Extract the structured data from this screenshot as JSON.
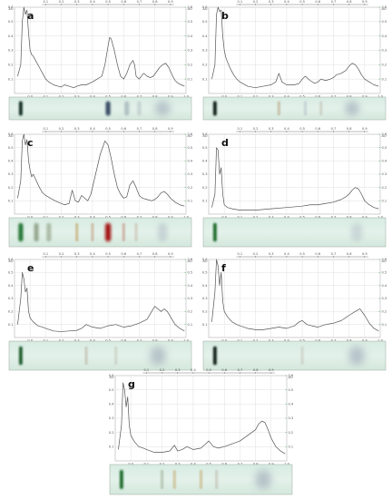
{
  "colors": {
    "curve": "#555555",
    "grid": "#d9d9d9",
    "axis": "#777777",
    "frame": "#b0b0b0",
    "strip_bg": "#e3f1ea",
    "green_axis_tick": "#4caf50"
  },
  "chart_data": [
    {
      "type": "line",
      "panel": "a",
      "xlim": [
        -0.1,
        1.0
      ],
      "ylim": [
        0,
        0.6
      ],
      "x_ticks_bottom": [
        "0.0",
        "0.1",
        "0.2",
        "0.3",
        "0.4",
        "0.5",
        "0.6",
        "0.7",
        "0.8",
        "0.9",
        "1.0"
      ],
      "x_ticks_top": [
        "0.1",
        "0.2",
        "0.3",
        "0.4",
        "0.5",
        "0.6",
        "0.7",
        "0.8",
        "0.9"
      ],
      "y_ticks": [
        "0.1",
        "0.2",
        "0.3",
        "0.4",
        "0.5",
        "0.6"
      ],
      "y_unit_label": "AU",
      "x": [
        -0.08,
        -0.06,
        -0.05,
        -0.04,
        -0.03,
        -0.02,
        -0.01,
        0.0,
        0.01,
        0.02,
        0.04,
        0.06,
        0.08,
        0.1,
        0.12,
        0.15,
        0.18,
        0.2,
        0.22,
        0.25,
        0.28,
        0.3,
        0.33,
        0.36,
        0.4,
        0.43,
        0.46,
        0.48,
        0.5,
        0.51,
        0.52,
        0.54,
        0.56,
        0.58,
        0.6,
        0.62,
        0.64,
        0.66,
        0.67,
        0.68,
        0.7,
        0.72,
        0.73,
        0.75,
        0.77,
        0.79,
        0.81,
        0.83,
        0.85,
        0.87,
        0.89,
        0.91,
        0.93,
        0.95,
        0.97,
        0.99
      ],
      "y": [
        0.12,
        0.2,
        0.5,
        0.6,
        0.55,
        0.58,
        0.42,
        0.3,
        0.27,
        0.26,
        0.22,
        0.18,
        0.14,
        0.1,
        0.08,
        0.06,
        0.05,
        0.045,
        0.06,
        0.05,
        0.04,
        0.05,
        0.06,
        0.06,
        0.08,
        0.1,
        0.12,
        0.2,
        0.33,
        0.39,
        0.38,
        0.3,
        0.2,
        0.12,
        0.1,
        0.14,
        0.2,
        0.23,
        0.2,
        0.12,
        0.1,
        0.13,
        0.14,
        0.12,
        0.11,
        0.12,
        0.15,
        0.18,
        0.2,
        0.21,
        0.18,
        0.13,
        0.09,
        0.07,
        0.06,
        0.05
      ],
      "strip_bands": [
        {
          "rf": -0.06,
          "color": "#0d2a20",
          "width": 0.022,
          "opacity": 1.0
        },
        {
          "rf": 0.5,
          "color": "#1c3050",
          "width": 0.03,
          "opacity": 0.85
        },
        {
          "rf": 0.62,
          "color": "#7a8a9a",
          "width": 0.03,
          "opacity": 0.45
        },
        {
          "rf": 0.7,
          "color": "#9aa3b0",
          "width": 0.025,
          "opacity": 0.35
        },
        {
          "rf": 0.85,
          "color": "#8a94a8",
          "width": 0.1,
          "opacity": 0.5
        }
      ]
    },
    {
      "type": "line",
      "panel": "b",
      "xlim": [
        -0.1,
        1.0
      ],
      "ylim": [
        0,
        0.6
      ],
      "x_ticks_bottom": [
        "0.0",
        "0.1",
        "0.2",
        "0.3",
        "0.4",
        "0.5",
        "0.6",
        "0.7",
        "0.8",
        "0.9",
        "1.0"
      ],
      "x_ticks_top": [
        "0.1",
        "0.2",
        "0.3",
        "0.4",
        "0.5",
        "0.6",
        "0.7",
        "0.8",
        "0.9"
      ],
      "y_ticks": [
        "0.1",
        "0.2",
        "0.3",
        "0.4",
        "0.5",
        "0.6"
      ],
      "y_unit_label": "AU",
      "x": [
        -0.08,
        -0.06,
        -0.05,
        -0.04,
        -0.03,
        -0.02,
        -0.01,
        0.0,
        0.01,
        0.02,
        0.04,
        0.06,
        0.08,
        0.1,
        0.15,
        0.2,
        0.25,
        0.3,
        0.33,
        0.35,
        0.37,
        0.4,
        0.45,
        0.48,
        0.5,
        0.52,
        0.55,
        0.58,
        0.6,
        0.62,
        0.65,
        0.68,
        0.7,
        0.72,
        0.75,
        0.78,
        0.8,
        0.82,
        0.84,
        0.86,
        0.88,
        0.9,
        0.93,
        0.96,
        0.99
      ],
      "y": [
        0.1,
        0.2,
        0.55,
        0.6,
        0.57,
        0.58,
        0.4,
        0.3,
        0.25,
        0.22,
        0.17,
        0.13,
        0.1,
        0.08,
        0.05,
        0.04,
        0.05,
        0.06,
        0.08,
        0.14,
        0.08,
        0.06,
        0.06,
        0.07,
        0.1,
        0.12,
        0.09,
        0.07,
        0.08,
        0.1,
        0.09,
        0.1,
        0.11,
        0.13,
        0.14,
        0.16,
        0.19,
        0.21,
        0.2,
        0.17,
        0.13,
        0.1,
        0.08,
        0.06,
        0.05
      ],
      "strip_bands": [
        {
          "rf": -0.06,
          "color": "#0a1e16",
          "width": 0.022,
          "opacity": 1.0
        },
        {
          "rf": 0.35,
          "color": "#b5a080",
          "width": 0.02,
          "opacity": 0.5
        },
        {
          "rf": 0.52,
          "color": "#a0a8b8",
          "width": 0.02,
          "opacity": 0.35
        },
        {
          "rf": 0.62,
          "color": "#b0a898",
          "width": 0.02,
          "opacity": 0.35
        },
        {
          "rf": 0.82,
          "color": "#8a94a8",
          "width": 0.09,
          "opacity": 0.5
        }
      ]
    },
    {
      "type": "line",
      "panel": "c",
      "xlim": [
        -0.1,
        1.0
      ],
      "ylim": [
        0,
        0.6
      ],
      "x_ticks_bottom": [
        "0.0",
        "0.1",
        "0.2",
        "0.3",
        "0.4",
        "0.5",
        "0.6",
        "0.7",
        "0.8",
        "0.9",
        "1.0"
      ],
      "x_ticks_top": [
        "0.1",
        "0.2",
        "0.3",
        "0.4",
        "0.5",
        "0.6",
        "0.7",
        "0.8",
        "0.9"
      ],
      "y_ticks": [
        "0.1",
        "0.2",
        "0.3",
        "0.4",
        "0.5",
        "0.6"
      ],
      "y_unit_label": "AU",
      "x": [
        -0.08,
        -0.06,
        -0.05,
        -0.04,
        -0.03,
        -0.02,
        -0.01,
        0.0,
        0.01,
        0.02,
        0.04,
        0.06,
        0.08,
        0.1,
        0.13,
        0.16,
        0.2,
        0.22,
        0.25,
        0.27,
        0.29,
        0.31,
        0.33,
        0.35,
        0.37,
        0.39,
        0.42,
        0.45,
        0.48,
        0.5,
        0.52,
        0.54,
        0.56,
        0.58,
        0.6,
        0.62,
        0.64,
        0.66,
        0.68,
        0.7,
        0.72,
        0.75,
        0.78,
        0.8,
        0.82,
        0.84,
        0.86,
        0.88,
        0.9,
        0.93,
        0.96,
        0.99
      ],
      "y": [
        0.12,
        0.25,
        0.55,
        0.6,
        0.52,
        0.56,
        0.4,
        0.33,
        0.28,
        0.3,
        0.25,
        0.2,
        0.16,
        0.14,
        0.12,
        0.1,
        0.08,
        0.07,
        0.08,
        0.18,
        0.1,
        0.09,
        0.14,
        0.12,
        0.1,
        0.15,
        0.3,
        0.45,
        0.55,
        0.52,
        0.42,
        0.3,
        0.2,
        0.15,
        0.12,
        0.13,
        0.22,
        0.25,
        0.2,
        0.14,
        0.12,
        0.11,
        0.1,
        0.11,
        0.13,
        0.16,
        0.17,
        0.15,
        0.12,
        0.09,
        0.07,
        0.06
      ],
      "strip_bands": [
        {
          "rf": -0.06,
          "color": "#2a7a3a",
          "width": 0.03,
          "opacity": 1.0
        },
        {
          "rf": 0.04,
          "color": "#6a7a5a",
          "width": 0.03,
          "opacity": 0.6
        },
        {
          "rf": 0.12,
          "color": "#7a8a6a",
          "width": 0.03,
          "opacity": 0.5
        },
        {
          "rf": 0.3,
          "color": "#c0a060",
          "width": 0.02,
          "opacity": 0.55
        },
        {
          "rf": 0.4,
          "color": "#c09070",
          "width": 0.02,
          "opacity": 0.45
        },
        {
          "rf": 0.5,
          "color": "#a01010",
          "width": 0.035,
          "opacity": 1.0
        },
        {
          "rf": 0.6,
          "color": "#c08070",
          "width": 0.02,
          "opacity": 0.45
        },
        {
          "rf": 0.68,
          "color": "#c0a090",
          "width": 0.02,
          "opacity": 0.35
        },
        {
          "rf": 0.85,
          "color": "#a0a8b8",
          "width": 0.06,
          "opacity": 0.4
        }
      ]
    },
    {
      "type": "line",
      "panel": "d",
      "xlim": [
        -0.1,
        1.0
      ],
      "ylim": [
        0,
        0.6
      ],
      "x_ticks_bottom": [
        "0.0",
        "0.1",
        "0.2",
        "0.3",
        "0.4",
        "0.5",
        "0.6",
        "0.7",
        "0.8",
        "0.9",
        "1.0"
      ],
      "x_ticks_top": [
        "0.1",
        "0.2",
        "0.3",
        "0.4",
        "0.5",
        "0.6",
        "0.7",
        "0.8",
        "0.9"
      ],
      "y_ticks": [
        "0.1",
        "0.2",
        "0.3",
        "0.4",
        "0.5",
        "0.6"
      ],
      "y_unit_label": "AU",
      "x": [
        -0.08,
        -0.06,
        -0.05,
        -0.04,
        -0.03,
        -0.02,
        -0.01,
        0.0,
        0.02,
        0.05,
        0.1,
        0.2,
        0.3,
        0.4,
        0.5,
        0.55,
        0.6,
        0.65,
        0.7,
        0.75,
        0.78,
        0.8,
        0.82,
        0.84,
        0.86,
        0.88,
        0.9,
        0.93,
        0.96,
        0.99
      ],
      "y": [
        0.05,
        0.15,
        0.5,
        0.48,
        0.3,
        0.35,
        0.15,
        0.07,
        0.05,
        0.04,
        0.03,
        0.03,
        0.04,
        0.05,
        0.06,
        0.07,
        0.07,
        0.08,
        0.09,
        0.11,
        0.13,
        0.15,
        0.18,
        0.2,
        0.19,
        0.15,
        0.1,
        0.07,
        0.05,
        0.04
      ],
      "strip_bands": [
        {
          "rf": -0.06,
          "color": "#1a6a2a",
          "width": 0.022,
          "opacity": 1.0
        },
        {
          "rf": 0.85,
          "color": "#a0a8b8",
          "width": 0.07,
          "opacity": 0.35
        }
      ]
    },
    {
      "type": "line",
      "panel": "e",
      "xlim": [
        -0.1,
        1.0
      ],
      "ylim": [
        0,
        0.6
      ],
      "x_ticks_bottom": [
        "0.0",
        "0.1",
        "0.2",
        "0.3",
        "0.4",
        "0.5",
        "0.6",
        "0.7",
        "0.8",
        "0.9",
        "1.0"
      ],
      "x_ticks_top": [
        "0.1",
        "0.2",
        "0.3",
        "0.4",
        "0.5",
        "0.6",
        "0.7",
        "0.8",
        "0.9"
      ],
      "y_ticks": [
        "0.1",
        "0.2",
        "0.3",
        "0.4",
        "0.5",
        "0.6"
      ],
      "y_unit_label": "AU",
      "x": [
        -0.08,
        -0.06,
        -0.05,
        -0.04,
        -0.03,
        -0.02,
        -0.01,
        0.0,
        0.02,
        0.05,
        0.08,
        0.1,
        0.15,
        0.2,
        0.25,
        0.3,
        0.33,
        0.36,
        0.4,
        0.45,
        0.5,
        0.55,
        0.6,
        0.65,
        0.7,
        0.75,
        0.78,
        0.8,
        0.82,
        0.84,
        0.86,
        0.88,
        0.9,
        0.93,
        0.96,
        0.99
      ],
      "y": [
        0.1,
        0.3,
        0.5,
        0.45,
        0.35,
        0.38,
        0.2,
        0.15,
        0.12,
        0.09,
        0.08,
        0.07,
        0.05,
        0.045,
        0.05,
        0.055,
        0.07,
        0.1,
        0.08,
        0.07,
        0.09,
        0.1,
        0.08,
        0.09,
        0.11,
        0.14,
        0.2,
        0.24,
        0.22,
        0.2,
        0.22,
        0.2,
        0.16,
        0.1,
        0.07,
        0.05
      ],
      "strip_bands": [
        {
          "rf": -0.06,
          "color": "#1a5a2a",
          "width": 0.022,
          "opacity": 1.0
        },
        {
          "rf": 0.36,
          "color": "#b0a090",
          "width": 0.02,
          "opacity": 0.4
        },
        {
          "rf": 0.55,
          "color": "#b0a898",
          "width": 0.02,
          "opacity": 0.3
        },
        {
          "rf": 0.82,
          "color": "#8a94a8",
          "width": 0.1,
          "opacity": 0.5
        }
      ]
    },
    {
      "type": "line",
      "panel": "f",
      "xlim": [
        -0.1,
        1.0
      ],
      "ylim": [
        0,
        0.6
      ],
      "x_ticks_bottom": [
        "0.0",
        "0.1",
        "0.2",
        "0.3",
        "0.4",
        "0.5",
        "0.6",
        "0.7",
        "0.8",
        "0.9",
        "1.0"
      ],
      "x_ticks_top": [
        "0.1",
        "0.2",
        "0.3",
        "0.4",
        "0.5",
        "0.6",
        "0.7",
        "0.8",
        "0.9"
      ],
      "y_ticks": [
        "0.1",
        "0.2",
        "0.3",
        "0.4",
        "0.5",
        "0.6"
      ],
      "y_unit_label": "AU",
      "x": [
        -0.08,
        -0.06,
        -0.05,
        -0.04,
        -0.03,
        -0.02,
        -0.01,
        0.0,
        0.02,
        0.05,
        0.08,
        0.1,
        0.15,
        0.2,
        0.25,
        0.3,
        0.35,
        0.4,
        0.45,
        0.48,
        0.5,
        0.53,
        0.56,
        0.6,
        0.65,
        0.7,
        0.75,
        0.8,
        0.84,
        0.87,
        0.9,
        0.93,
        0.96,
        0.99
      ],
      "y": [
        0.12,
        0.35,
        0.6,
        0.55,
        0.4,
        0.5,
        0.28,
        0.2,
        0.16,
        0.12,
        0.1,
        0.09,
        0.07,
        0.06,
        0.06,
        0.07,
        0.08,
        0.07,
        0.09,
        0.12,
        0.13,
        0.1,
        0.09,
        0.08,
        0.1,
        0.11,
        0.13,
        0.17,
        0.2,
        0.22,
        0.17,
        0.11,
        0.07,
        0.05
      ],
      "strip_bands": [
        {
          "rf": -0.06,
          "color": "#0a1e16",
          "width": 0.022,
          "opacity": 1.0
        },
        {
          "rf": 0.5,
          "color": "#b0a898",
          "width": 0.02,
          "opacity": 0.3
        },
        {
          "rf": 0.85,
          "color": "#8a94a8",
          "width": 0.1,
          "opacity": 0.5
        }
      ]
    },
    {
      "type": "line",
      "panel": "g",
      "xlim": [
        -0.1,
        1.0
      ],
      "ylim": [
        0,
        0.6
      ],
      "x_ticks_bottom": [
        "0.0",
        "0.1",
        "0.2",
        "0.3",
        "0.4",
        "0.5",
        "0.6",
        "0.7",
        "0.8",
        "0.9",
        "1.0"
      ],
      "x_ticks_top": [
        "0.1",
        "0.2",
        "0.3",
        "0.4",
        "0.5",
        "0.6",
        "0.7",
        "0.8",
        "0.9"
      ],
      "y_ticks": [
        "0.1",
        "0.2",
        "0.3",
        "0.4",
        "0.5",
        "0.6"
      ],
      "y_unit_label": "AU",
      "x": [
        -0.08,
        -0.06,
        -0.05,
        -0.04,
        -0.03,
        -0.02,
        -0.01,
        0.0,
        0.02,
        0.05,
        0.08,
        0.1,
        0.15,
        0.2,
        0.25,
        0.28,
        0.3,
        0.33,
        0.36,
        0.4,
        0.45,
        0.48,
        0.5,
        0.53,
        0.56,
        0.6,
        0.65,
        0.7,
        0.75,
        0.8,
        0.82,
        0.84,
        0.86,
        0.88,
        0.9,
        0.93,
        0.96,
        0.99
      ],
      "y": [
        0.08,
        0.25,
        0.55,
        0.5,
        0.38,
        0.45,
        0.25,
        0.18,
        0.14,
        0.1,
        0.09,
        0.08,
        0.06,
        0.06,
        0.07,
        0.11,
        0.07,
        0.08,
        0.1,
        0.08,
        0.09,
        0.12,
        0.14,
        0.1,
        0.09,
        0.1,
        0.12,
        0.14,
        0.18,
        0.22,
        0.26,
        0.28,
        0.27,
        0.22,
        0.16,
        0.1,
        0.07,
        0.05
      ],
      "strip_bands": [
        {
          "rf": -0.06,
          "color": "#1a6a2a",
          "width": 0.022,
          "opacity": 1.0
        },
        {
          "rf": 0.2,
          "color": "#8a9a7a",
          "width": 0.02,
          "opacity": 0.4
        },
        {
          "rf": 0.28,
          "color": "#c0a060",
          "width": 0.02,
          "opacity": 0.45
        },
        {
          "rf": 0.45,
          "color": "#c0a060",
          "width": 0.02,
          "opacity": 0.45
        },
        {
          "rf": 0.55,
          "color": "#b0a090",
          "width": 0.02,
          "opacity": 0.35
        },
        {
          "rf": 0.85,
          "color": "#8a94a8",
          "width": 0.1,
          "opacity": 0.5
        }
      ]
    }
  ]
}
